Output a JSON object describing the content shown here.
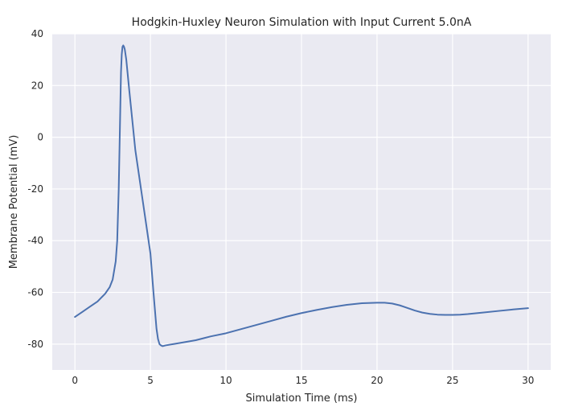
{
  "chart_data": {
    "type": "line",
    "title": "Hodgkin-Huxley Neuron Simulation with Input Current 5.0nA",
    "xlabel": "Simulation Time (ms)",
    "ylabel": "Membrane Potential (mV)",
    "xlim": [
      -1.5,
      31.5
    ],
    "ylim": [
      -90,
      40
    ],
    "xticks": [
      0,
      5,
      10,
      15,
      20,
      25,
      30
    ],
    "yticks": [
      -80,
      -60,
      -40,
      -20,
      0,
      20,
      40
    ],
    "grid": true,
    "series": [
      {
        "color": "#4c72b0",
        "x": [
          0,
          0.5,
          1,
          1.5,
          2,
          2.3,
          2.5,
          2.7,
          2.8,
          2.9,
          3.0,
          3.05,
          3.1,
          3.15,
          3.2,
          3.25,
          3.3,
          3.4,
          3.6,
          4.0,
          4.5,
          5.0,
          5.2,
          5.4,
          5.5,
          5.6,
          5.7,
          5.8,
          6.0,
          7,
          8,
          9,
          10,
          11,
          12,
          13,
          14,
          15,
          16,
          17,
          18,
          19,
          20,
          20.5,
          21,
          21.5,
          22,
          22.5,
          23,
          23.5,
          24,
          24.5,
          25,
          25.5,
          26,
          27,
          28,
          29,
          30
        ],
        "y": [
          -69.5,
          -67.5,
          -65.5,
          -63.5,
          -60.5,
          -58,
          -55,
          -48,
          -40,
          -20,
          10,
          25,
          32,
          35,
          35.5,
          35,
          34,
          30,
          18,
          -5,
          -25,
          -45,
          -60,
          -74,
          -78,
          -80,
          -80.5,
          -80.8,
          -80.5,
          -79.5,
          -78.5,
          -77,
          -75.8,
          -74.2,
          -72.6,
          -71,
          -69.4,
          -68,
          -66.8,
          -65.7,
          -64.8,
          -64.2,
          -64,
          -64,
          -64.3,
          -65,
          -66,
          -67,
          -67.8,
          -68.3,
          -68.6,
          -68.7,
          -68.7,
          -68.6,
          -68.4,
          -67.8,
          -67.2,
          -66.6,
          -66.1
        ]
      }
    ]
  }
}
